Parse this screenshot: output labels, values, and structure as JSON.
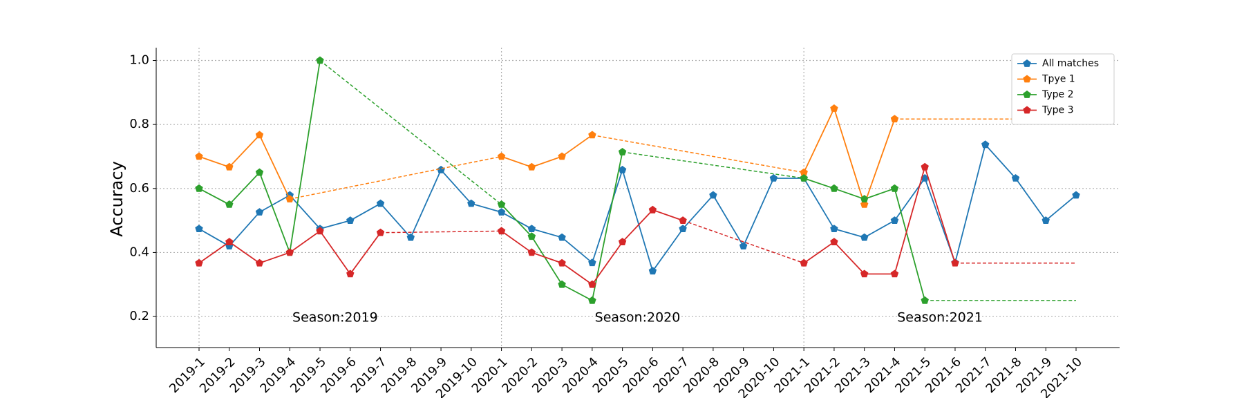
{
  "chart_data": {
    "type": "line",
    "ylabel": "Accuracy",
    "categories": [
      "2019-1",
      "2019-2",
      "2019-3",
      "2019-4",
      "2019-5",
      "2019-6",
      "2019-7",
      "2019-8",
      "2019-9",
      "2019-10",
      "2020-1",
      "2020-2",
      "2020-3",
      "2020-4",
      "2020-5",
      "2020-6",
      "2020-7",
      "2020-8",
      "2020-9",
      "2020-10",
      "2021-1",
      "2021-2",
      "2021-3",
      "2021-4",
      "2021-5",
      "2021-6",
      "2021-7",
      "2021-8",
      "2021-9",
      "2021-10"
    ],
    "series": [
      {
        "name": "All matches",
        "color": "#1f77b4",
        "values": [
          0.474,
          0.42,
          0.526,
          0.579,
          0.474,
          0.5,
          0.553,
          0.447,
          0.658,
          0.553,
          0.526,
          0.474,
          0.447,
          0.368,
          0.658,
          0.342,
          0.474,
          0.579,
          0.42,
          0.632,
          0.632,
          0.474,
          0.447,
          0.5,
          0.632,
          0.368,
          0.737,
          0.632,
          0.5,
          0.579
        ]
      },
      {
        "name": "Tpye 1",
        "color": "#ff7f0e",
        "values": [
          0.7,
          0.667,
          0.767,
          0.567,
          null,
          null,
          null,
          null,
          null,
          null,
          0.7,
          0.667,
          0.7,
          0.767,
          null,
          null,
          null,
          null,
          null,
          null,
          0.65,
          0.85,
          0.55,
          0.817,
          null,
          null,
          null,
          null,
          null,
          null
        ]
      },
      {
        "name": "Type 2",
        "color": "#2ca02c",
        "values": [
          0.6,
          0.55,
          0.65,
          0.4,
          1.0,
          null,
          null,
          null,
          null,
          null,
          0.55,
          0.45,
          0.3,
          0.25,
          0.714,
          null,
          null,
          null,
          null,
          null,
          0.632,
          0.6,
          0.567,
          0.6,
          0.25,
          null,
          null,
          null,
          null,
          null
        ]
      },
      {
        "name": "Type 3",
        "color": "#d62728",
        "values": [
          0.367,
          0.433,
          0.367,
          0.4,
          0.467,
          0.333,
          0.462,
          null,
          null,
          null,
          0.467,
          0.4,
          0.367,
          0.3,
          0.433,
          0.533,
          0.5,
          null,
          null,
          null,
          0.367,
          0.433,
          0.333,
          0.333,
          0.667,
          0.367,
          null,
          null,
          null,
          null
        ]
      }
    ],
    "annotations": [
      "Season:2019",
      "Season:2020",
      "Season:2021"
    ],
    "ylim": [
      0.103,
      1.04
    ],
    "yticks": [
      {
        "value": 0.2,
        "label": "0.2"
      },
      {
        "value": 0.4,
        "label": "0.4"
      },
      {
        "value": 0.6,
        "label": "0.6"
      },
      {
        "value": 0.8,
        "label": "0.8"
      },
      {
        "value": 1.0,
        "label": "1.0"
      }
    ],
    "grid": true,
    "gaps": "dashed",
    "legend": "upper right",
    "marker": "pentagon"
  }
}
